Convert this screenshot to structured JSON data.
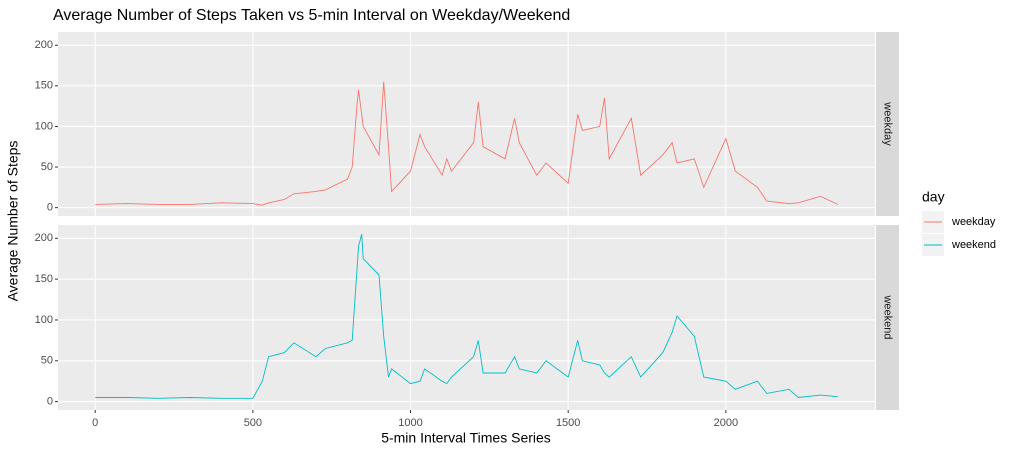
{
  "chart_data": {
    "type": "line",
    "title": "Average Number of Steps Taken vs 5-min Interval on Weekday/Weekend",
    "x_label": "5-min Interval Times Series",
    "y_label": "Average Number of Steps",
    "legend_title": "day",
    "x": [
      0,
      100,
      200,
      300,
      400,
      500,
      530,
      550,
      600,
      630,
      700,
      730,
      800,
      815,
      830,
      835,
      845,
      850,
      900,
      915,
      930,
      940,
      1000,
      1030,
      1045,
      1100,
      1115,
      1130,
      1200,
      1215,
      1230,
      1300,
      1330,
      1345,
      1400,
      1430,
      1500,
      1530,
      1545,
      1600,
      1615,
      1630,
      1700,
      1730,
      1800,
      1830,
      1845,
      1900,
      1930,
      2000,
      2030,
      2100,
      2130,
      2200,
      2230,
      2300,
      2355
    ],
    "series": [
      {
        "name": "weekday",
        "color": "#F8766D",
        "values": [
          4,
          5,
          4,
          4,
          6,
          5,
          3,
          6,
          10,
          17,
          20,
          22,
          35,
          50,
          125,
          145,
          115,
          100,
          65,
          155,
          75,
          20,
          45,
          90,
          75,
          40,
          60,
          45,
          80,
          130,
          75,
          60,
          110,
          80,
          40,
          55,
          30,
          115,
          95,
          100,
          135,
          60,
          110,
          40,
          65,
          80,
          55,
          60,
          25,
          85,
          45,
          25,
          8,
          5,
          6,
          14,
          4
        ]
      },
      {
        "name": "weekend",
        "color": "#00BFC4",
        "values": [
          5,
          5,
          4,
          5,
          4,
          4,
          25,
          55,
          60,
          72,
          55,
          65,
          72,
          75,
          160,
          190,
          205,
          175,
          155,
          80,
          30,
          40,
          22,
          25,
          40,
          25,
          22,
          30,
          55,
          75,
          35,
          35,
          55,
          40,
          35,
          50,
          30,
          75,
          50,
          45,
          35,
          30,
          55,
          30,
          60,
          85,
          105,
          80,
          30,
          25,
          15,
          25,
          10,
          15,
          5,
          8,
          6
        ]
      }
    ],
    "xlim": [
      -118,
      2473
    ],
    "xticks": [
      0,
      500,
      1000,
      1500,
      2000
    ],
    "ylim": [
      -10.3,
      216.3
    ],
    "yticks": [
      0,
      50,
      100,
      150,
      200
    ],
    "grid": true
  }
}
